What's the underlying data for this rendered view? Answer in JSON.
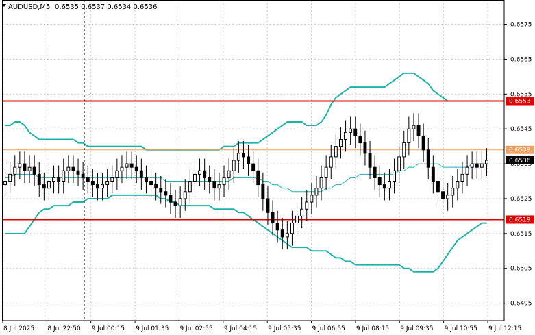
{
  "window": {
    "symbol_title": "AUDUSD,M5",
    "ohlc": "0.6535 0.6537 0.6534 0.6536",
    "dropdown_icon": "triangle-down-icon"
  },
  "colors": {
    "background": "#ffffff",
    "grid": "#c8c8c8",
    "candle": "#000000",
    "band": "#20b2aa",
    "red_line": "#e00000",
    "orange_line": "#f0a060",
    "current_price_bg": "#000000"
  },
  "y_axis": {
    "min": 0.649,
    "max": 0.6582,
    "tick_labels": [
      "0.6575",
      "0.6565",
      "0.6555",
      "0.6545",
      "0.6535",
      "0.6525",
      "0.6515",
      "0.6505",
      "0.6495"
    ],
    "tick_values": [
      0.6575,
      0.6565,
      0.6555,
      0.6545,
      0.6535,
      0.6525,
      0.6515,
      0.6505,
      0.6495
    ]
  },
  "x_axis": {
    "labels": [
      "8 Jul 2025",
      "8 Jul 22:50",
      "9 Jul 00:15",
      "9 Jul 01:35",
      "9 Jul 02:55",
      "9 Jul 04:15",
      "9 Jul 05:35",
      "9 Jul 06:55",
      "9 Jul 08:15",
      "9 Jul 09:35",
      "9 Jul 10:55",
      "9 Jul 12:15"
    ]
  },
  "price_lines": [
    {
      "label": "0.6553",
      "value": 0.6553,
      "type": "red"
    },
    {
      "label": "0.6539",
      "value": 0.6539,
      "type": "orange"
    },
    {
      "label": "0.6519",
      "value": 0.6519,
      "type": "red"
    }
  ],
  "current_price": {
    "label": "0.6536",
    "value": 0.6536
  },
  "chart_data": {
    "type": "candlestick",
    "close": [
      0.653,
      0.6532,
      0.6534,
      0.6535,
      0.6533,
      0.6534,
      0.6532,
      0.6529,
      0.6528,
      0.653,
      0.6531,
      0.653,
      0.6533,
      0.6534,
      0.6533,
      0.6532,
      0.6531,
      0.653,
      0.6529,
      0.6528,
      0.6529,
      0.653,
      0.6531,
      0.6533,
      0.6534,
      0.6535,
      0.6534,
      0.6533,
      0.6531,
      0.653,
      0.6529,
      0.6528,
      0.6527,
      0.6526,
      0.6524,
      0.6523,
      0.6525,
      0.6527,
      0.653,
      0.6532,
      0.6533,
      0.6531,
      0.653,
      0.6528,
      0.6529,
      0.6531,
      0.6533,
      0.6536,
      0.6538,
      0.6537,
      0.6535,
      0.6533,
      0.6529,
      0.6525,
      0.6521,
      0.6518,
      0.6516,
      0.6514,
      0.6515,
      0.6518,
      0.652,
      0.6522,
      0.6524,
      0.6526,
      0.6528,
      0.6531,
      0.6534,
      0.6537,
      0.654,
      0.6542,
      0.6544,
      0.6545,
      0.6543,
      0.6541,
      0.6538,
      0.6534,
      0.6531,
      0.6529,
      0.6528,
      0.653,
      0.6533,
      0.6537,
      0.6541,
      0.6545,
      0.6546,
      0.6543,
      0.6539,
      0.6534,
      0.653,
      0.6527,
      0.6525,
      0.6526,
      0.6528,
      0.653,
      0.6532,
      0.6534,
      0.6535,
      0.6534,
      0.6535,
      0.6536
    ],
    "ema": [
      0.6531,
      0.6531,
      0.6532,
      0.6532,
      0.6532,
      0.6532,
      0.6532,
      0.6531,
      0.6531,
      0.6531,
      0.6531,
      0.6531,
      0.6531,
      0.6531,
      0.6531,
      0.6531,
      0.6531,
      0.6531,
      0.6531,
      0.6531,
      0.6531,
      0.6531,
      0.6531,
      0.6531,
      0.6531,
      0.6531,
      0.6531,
      0.6531,
      0.6531,
      0.6531,
      0.6531,
      0.6531,
      0.6531,
      0.653,
      0.653,
      0.653,
      0.653,
      0.653,
      0.653,
      0.653,
      0.653,
      0.653,
      0.653,
      0.653,
      0.653,
      0.653,
      0.653,
      0.6531,
      0.6531,
      0.6531,
      0.6531,
      0.6531,
      0.6531,
      0.653,
      0.653,
      0.6529,
      0.6529,
      0.6528,
      0.6528,
      0.6527,
      0.6527,
      0.6527,
      0.6527,
      0.6527,
      0.6527,
      0.6527,
      0.6528,
      0.6528,
      0.6529,
      0.6529,
      0.653,
      0.6531,
      0.6531,
      0.6532,
      0.6532,
      0.6532,
      0.6532,
      0.6532,
      0.6532,
      0.6532,
      0.6532,
      0.6533,
      0.6533,
      0.6534,
      0.6534,
      0.6535,
      0.6535,
      0.6535,
      0.6535,
      0.6535,
      0.6534,
      0.6534,
      0.6534,
      0.6534,
      0.6534,
      0.6534,
      0.6535,
      0.6535,
      0.6535,
      0.6535
    ],
    "upper_band": [
      0.6546,
      0.6546,
      0.6547,
      0.6547,
      0.6546,
      0.6544,
      0.6543,
      0.6542,
      0.6542,
      0.6542,
      0.6542,
      0.6542,
      0.6542,
      0.6542,
      0.6542,
      0.6541,
      0.6541,
      0.654,
      0.654,
      0.654,
      0.654,
      0.654,
      0.654,
      0.654,
      0.654,
      0.654,
      0.654,
      0.654,
      0.654,
      0.6539,
      0.6539,
      0.6539,
      0.6539,
      0.6539,
      0.6539,
      0.6539,
      0.6539,
      0.6539,
      0.6539,
      0.6539,
      0.6539,
      0.6539,
      0.6539,
      0.6539,
      0.6539,
      0.654,
      0.654,
      0.654,
      0.6541,
      0.6541,
      0.6541,
      0.6541,
      0.6541,
      0.6542,
      0.6543,
      0.6544,
      0.6545,
      0.6546,
      0.6547,
      0.6547,
      0.6547,
      0.6547,
      0.6546,
      0.6546,
      0.6546,
      0.6547,
      0.6549,
      0.6552,
      0.6554,
      0.6555,
      0.6556,
      0.6557,
      0.6557,
      0.6557,
      0.6557,
      0.6557,
      0.6557,
      0.6557,
      0.6557,
      0.6558,
      0.6559,
      0.656,
      0.6561,
      0.6561,
      0.6561,
      0.656,
      0.6559,
      0.6558,
      0.6556,
      0.6555,
      0.6554,
      0.6553,
      0.6553,
      0.6553,
      0.6553,
      0.6553,
      0.6553,
      0.6553,
      0.6553,
      0.6553
    ],
    "lower_band": [
      0.6515,
      0.6515,
      0.6515,
      0.6515,
      0.6515,
      0.6517,
      0.6519,
      0.6521,
      0.6522,
      0.6522,
      0.6523,
      0.6523,
      0.6523,
      0.6523,
      0.6524,
      0.6524,
      0.6524,
      0.6525,
      0.6525,
      0.6525,
      0.6525,
      0.6525,
      0.6526,
      0.6526,
      0.6526,
      0.6526,
      0.6526,
      0.6526,
      0.6526,
      0.6526,
      0.6526,
      0.6526,
      0.6525,
      0.6525,
      0.6524,
      0.6524,
      0.6523,
      0.6523,
      0.6523,
      0.6523,
      0.6523,
      0.6523,
      0.6523,
      0.6522,
      0.6522,
      0.6522,
      0.6522,
      0.6522,
      0.6521,
      0.6521,
      0.652,
      0.6519,
      0.6518,
      0.6517,
      0.6516,
      0.6515,
      0.6514,
      0.6513,
      0.6512,
      0.6511,
      0.6511,
      0.6511,
      0.6511,
      0.651,
      0.651,
      0.651,
      0.651,
      0.6509,
      0.6508,
      0.6508,
      0.6507,
      0.6507,
      0.6506,
      0.6506,
      0.6506,
      0.6506,
      0.6506,
      0.6506,
      0.6506,
      0.6506,
      0.6506,
      0.6506,
      0.6505,
      0.6505,
      0.6504,
      0.6504,
      0.6504,
      0.6504,
      0.6504,
      0.6505,
      0.6507,
      0.6509,
      0.6511,
      0.6513,
      0.6514,
      0.6515,
      0.6516,
      0.6517,
      0.6518,
      0.6518
    ]
  }
}
